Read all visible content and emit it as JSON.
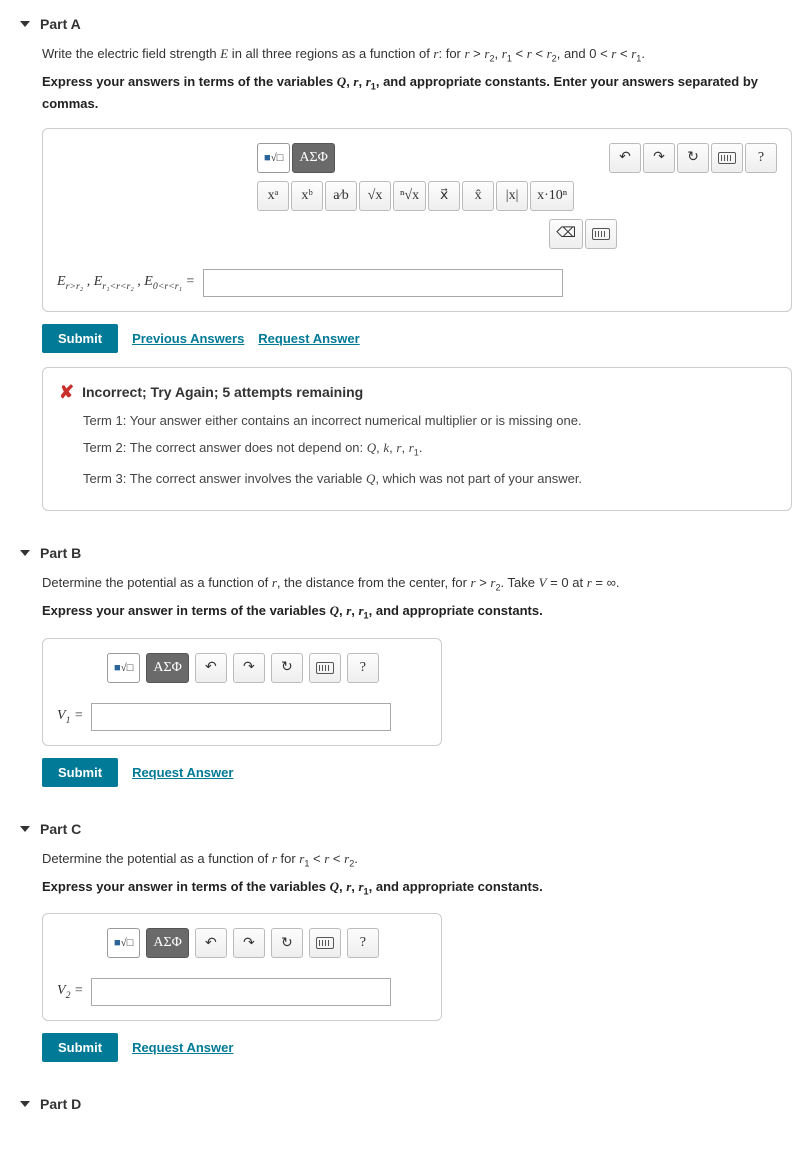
{
  "partA": {
    "title": "Part A",
    "prompt_html": "Write the electric field strength <span class='math'>E</span> in all three regions as a function of <span class='math'>r</span>: for <span class='math'>r</span> &gt; <span class='math'>r</span><span class='sub'>2</span>, <span class='math'>r</span><span class='sub'>1</span> &lt; <span class='math'>r</span> &lt; <span class='math'>r</span><span class='sub'>2</span>, and 0 &lt; <span class='math'>r</span> &lt; <span class='math'>r</span><span class='sub'>1</span>.",
    "instruction_html": "Express your answers in terms of the variables <span class='math'>Q</span>, <span class='math'>r</span>, <span class='math'>r</span><span class='sub'>1</span>, and appropriate constants. Enter your answers separated by commas.",
    "answer_label_html": "<span class='math'>E</span><span class='sub'>r&gt;r₂</span> , <span class='math'>E</span><span class='sub'>r₁&lt;r&lt;r₂</span> , <span class='math'>E</span><span class='sub'>0&lt;r&lt;r₁</span> =",
    "submit": "Submit",
    "prev_answers": "Previous Answers",
    "request_answer": "Request Answer",
    "feedback": {
      "title": "Incorrect; Try Again; 5 attempts remaining",
      "term1": "Term 1: Your answer either contains an incorrect numerical multiplier or is missing one.",
      "term2_html": "Term 2: The correct answer does not depend on: <span class='math'>Q</span>, <span class='math'>k</span>, <span class='math'>r</span>, <span class='math'>r</span><span class='sub'>1</span>.",
      "term3_html": "Term 3: The correct answer involves the variable <span class='math'>Q</span>, which was not part of your answer."
    }
  },
  "partB": {
    "title": "Part B",
    "prompt_html": "Determine the potential as a function of <span class='math'>r</span>, the distance from the center, for <span class='math'>r</span> &gt; <span class='math'>r</span><span class='sub'>2</span>. Take <span class='math'>V</span> = 0 at <span class='math'>r</span> = ∞.",
    "instruction_html": "Express your answer in terms of the variables <span class='math'>Q</span>, <span class='math'>r</span>, <span class='math'>r</span><span class='sub'>1</span>, and appropriate constants.",
    "answer_label_html": "<span class='math'>V</span><span class='sub'>1</span> =",
    "submit": "Submit",
    "request_answer": "Request Answer"
  },
  "partC": {
    "title": "Part C",
    "prompt_html": "Determine the potential as a function of <span class='math'>r</span> for <span class='math'>r</span><span class='sub'>1</span> &lt; <span class='math'>r</span> &lt; <span class='math'>r</span><span class='sub'>2</span>.",
    "instruction_html": "Express your answer in terms of the variables <span class='math'>Q</span>, <span class='math'>r</span>, <span class='math'>r</span><span class='sub'>1</span>, and appropriate constants.",
    "answer_label_html": "<span class='math'>V</span><span class='sub'>2</span> =",
    "submit": "Submit",
    "request_answer": "Request Answer"
  },
  "partD": {
    "title": "Part D"
  },
  "toolbar": {
    "templates": "■√□",
    "greek": "ΑΣΦ",
    "undo": "↶",
    "redo": "↷",
    "reset": "↻",
    "help": "?",
    "xa": "xᵃ",
    "xb": "xᵇ",
    "frac": "a⁄b",
    "sqrt": "√x",
    "nroot": "ⁿ√x",
    "vec": "x⃗",
    "hat": "x̂",
    "abs": "|x|",
    "sci": "x·10ⁿ"
  },
  "colors": {
    "primary": "#007a96",
    "error": "#c9302c"
  }
}
